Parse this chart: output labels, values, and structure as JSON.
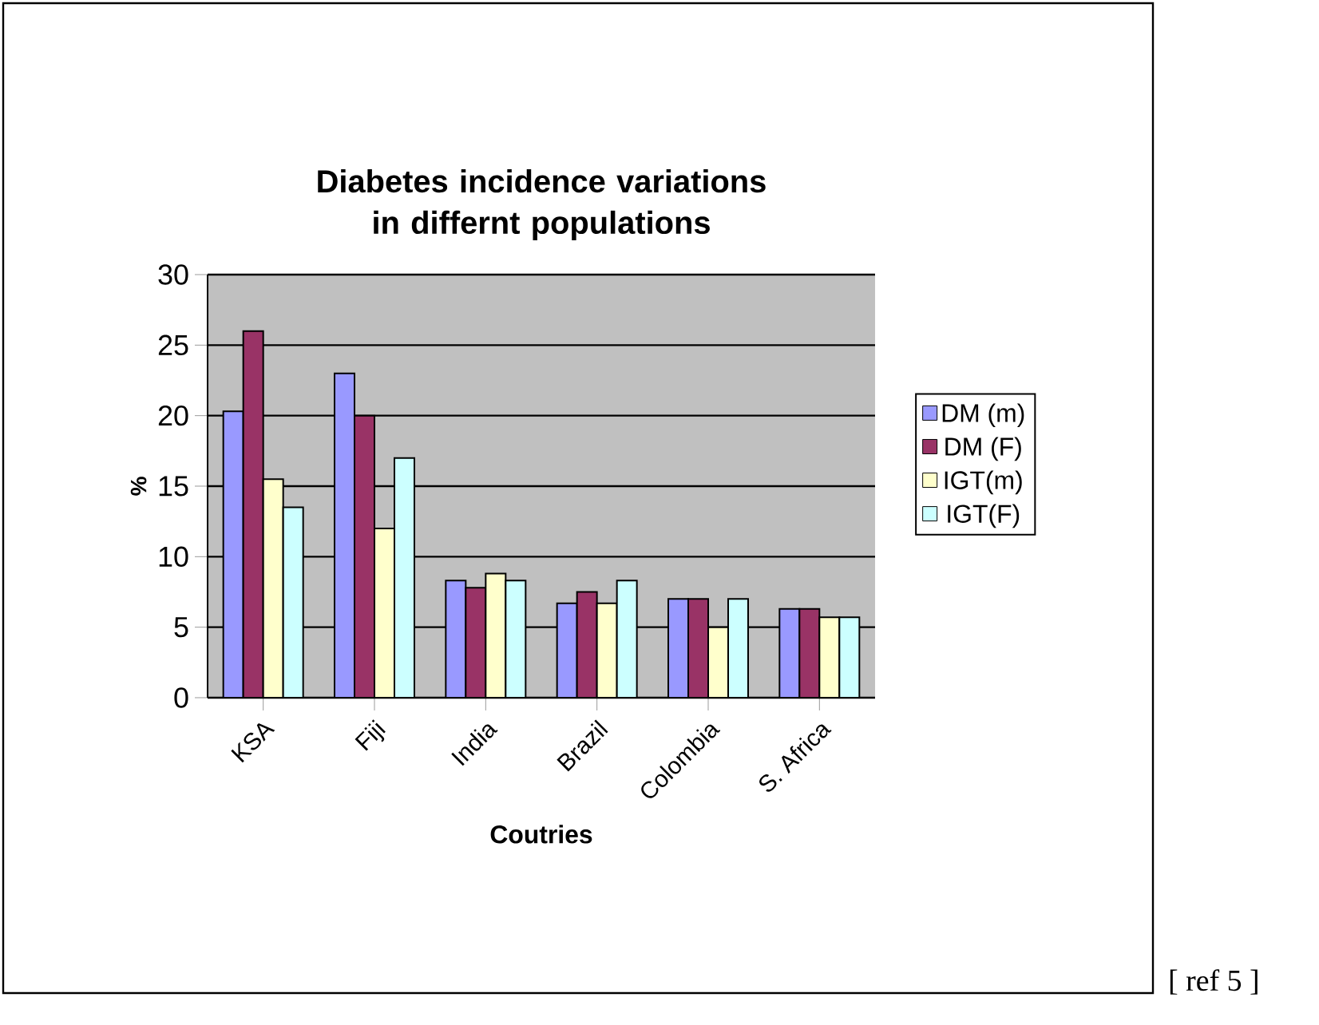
{
  "chart_data": {
    "type": "bar",
    "title": "Diabetes incidence variations in differnt populations",
    "xlabel": "Coutries",
    "ylabel": "%",
    "categories": [
      "KSA",
      "Fiji",
      "India",
      "Brazil",
      "Colombia",
      "S. Africa"
    ],
    "series": [
      {
        "name": "DM (m)",
        "color": "#9999ff",
        "values": [
          20.3,
          23,
          8.3,
          6.7,
          7,
          6.3
        ]
      },
      {
        "name": "DM (F)",
        "color": "#993366",
        "values": [
          26,
          20,
          7.8,
          7.5,
          7,
          6.3
        ]
      },
      {
        "name": "IGT(m)",
        "color": "#ffffcc",
        "values": [
          15.5,
          12,
          8.8,
          6.7,
          5,
          5.7
        ]
      },
      {
        "name": "IGT(F)",
        "color": "#ccffff",
        "values": [
          13.5,
          17,
          8.3,
          8.3,
          7,
          5.7
        ]
      }
    ],
    "ylim": [
      0,
      30
    ],
    "yticks": [
      0,
      5,
      10,
      15,
      20,
      25,
      30
    ],
    "grid": "y",
    "legend": "right",
    "annotations": [
      "[ ref 5 ]"
    ]
  }
}
